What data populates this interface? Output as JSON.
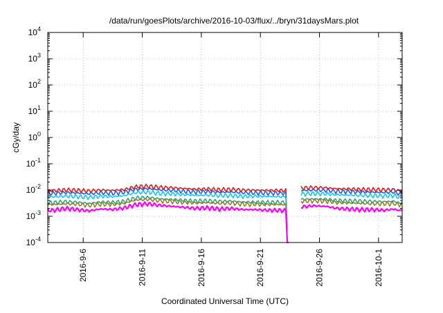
{
  "chart_data": {
    "type": "line",
    "title": "/data/run/goesPlots/archive/2016-10-03/flux/../bryn/31daysMars.plot",
    "xlabel": "Coordinated Universal Time (UTC)",
    "ylabel": "cGy/day",
    "yscale": "log",
    "ylim": [
      0.0001,
      10000
    ],
    "xlim": [
      "2016-09-03T00:00",
      "2016-10-03T00:00"
    ],
    "grid": true,
    "y_ticks": [
      {
        "value": 0.0001,
        "base": "10",
        "exp": "-4"
      },
      {
        "value": 0.001,
        "base": "10",
        "exp": "-3"
      },
      {
        "value": 0.01,
        "base": "10",
        "exp": "-2"
      },
      {
        "value": 0.1,
        "base": "10",
        "exp": "-1"
      },
      {
        "value": 1,
        "base": "10",
        "exp": "0"
      },
      {
        "value": 10,
        "base": "10",
        "exp": "1"
      },
      {
        "value": 100,
        "base": "10",
        "exp": "2"
      },
      {
        "value": 1000,
        "base": "10",
        "exp": "3"
      },
      {
        "value": 10000,
        "base": "10",
        "exp": "4"
      }
    ],
    "x_ticks": [
      {
        "date": "2016-09-06",
        "label": "2016-9-6"
      },
      {
        "date": "2016-09-11",
        "label": "2016-9-11"
      },
      {
        "date": "2016-09-16",
        "label": "2016-9-16"
      },
      {
        "date": "2016-09-21",
        "label": "2016-9-21"
      },
      {
        "date": "2016-09-26",
        "label": "2016-9-26"
      },
      {
        "date": "2016-10-01",
        "label": "2016-10-1"
      }
    ],
    "x": [
      "2016-09-03T12:00",
      "2016-09-04T12:00",
      "2016-09-05T12:00",
      "2016-09-06T12:00",
      "2016-09-07T12:00",
      "2016-09-08T12:00",
      "2016-09-09T12:00",
      "2016-09-10T12:00",
      "2016-09-11T12:00",
      "2016-09-12T12:00",
      "2016-09-13T12:00",
      "2016-09-14T12:00",
      "2016-09-15T12:00",
      "2016-09-16T12:00",
      "2016-09-17T12:00",
      "2016-09-18T12:00",
      "2016-09-19T12:00",
      "2016-09-20T12:00",
      "2016-09-21T12:00",
      "2016-09-22T12:00",
      "2016-09-23T12:00",
      "2016-09-24T12:00",
      "2016-09-25T12:00",
      "2016-09-26T12:00",
      "2016-09-27T12:00",
      "2016-09-28T12:00",
      "2016-09-29T12:00",
      "2016-09-30T12:00",
      "2016-10-01T12:00",
      "2016-10-02T12:00"
    ],
    "series": [
      {
        "color": "#e41a1c",
        "values": [
          0.0095,
          0.0102,
          0.0098,
          0.0092,
          0.01,
          0.0097,
          0.0105,
          0.0135,
          0.014,
          0.0128,
          0.0122,
          0.0115,
          0.0108,
          0.011,
          0.0104,
          0.0106,
          0.01,
          0.0099,
          0.0098,
          0.0097,
          0.0096,
          0.012,
          0.0125,
          0.0122,
          0.0112,
          0.011,
          0.0106,
          0.0104,
          0.0102,
          0.0105
        ]
      },
      {
        "color": "#1f5fe0",
        "values": [
          0.0075,
          0.008,
          0.0077,
          0.0072,
          0.0079,
          0.0076,
          0.0083,
          0.0108,
          0.0112,
          0.0101,
          0.0097,
          0.009,
          0.0085,
          0.0087,
          0.0082,
          0.0084,
          0.0079,
          0.0078,
          0.0077,
          0.0076,
          0.0075,
          0.0096,
          0.01,
          0.0097,
          0.0089,
          0.0087,
          0.0084,
          0.0082,
          0.0081,
          0.0083
        ]
      },
      {
        "color": "#19c4e8",
        "values": [
          0.0055,
          0.0059,
          0.0057,
          0.0053,
          0.0058,
          0.0056,
          0.0061,
          0.008,
          0.0083,
          0.0075,
          0.0072,
          0.0067,
          0.0063,
          0.0064,
          0.0061,
          0.0062,
          0.0058,
          0.0058,
          0.0057,
          0.0056,
          0.0055,
          0.0071,
          0.0074,
          0.0072,
          0.0066,
          0.0064,
          0.0062,
          0.0061,
          0.006,
          0.0062
        ]
      },
      {
        "color": "#2aa879",
        "values": [
          0.0033,
          0.0036,
          0.0034,
          0.0031,
          0.0035,
          0.0034,
          0.0037,
          0.005,
          0.0052,
          0.0046,
          0.0044,
          0.0041,
          0.0038,
          0.0039,
          0.0037,
          0.0038,
          0.0035,
          0.0035,
          0.0034,
          0.0034,
          0.0033,
          0.0044,
          0.0046,
          0.0045,
          0.004,
          0.0039,
          0.0038,
          0.0037,
          0.0036,
          0.0038
        ]
      },
      {
        "color": "#9a7b2a",
        "values": [
          0.0028,
          0.003,
          0.0029,
          0.0026,
          0.0029,
          0.0028,
          0.0031,
          0.0042,
          0.0044,
          0.0039,
          0.0037,
          0.0034,
          0.0032,
          0.0033,
          0.0031,
          0.0032,
          0.0029,
          0.0029,
          0.0028,
          0.0028,
          0.0027,
          0.0037,
          0.0039,
          0.0038,
          0.0033,
          0.0032,
          0.0031,
          0.003,
          0.003,
          0.0031
        ]
      },
      {
        "color": "#ff00ff",
        "values": [
          0.0017,
          0.002,
          0.0018,
          0.0016,
          0.0019,
          0.0018,
          0.0021,
          0.0028,
          0.003,
          0.0026,
          0.0024,
          0.0022,
          0.002,
          0.0021,
          0.0019,
          0.002,
          0.0018,
          0.0018,
          0.0017,
          0.0017,
          0.0016,
          0.0023,
          0.0025,
          0.0024,
          0.002,
          0.0019,
          0.0018,
          0.0018,
          0.0017,
          0.0019
        ]
      }
    ],
    "data_gap": {
      "dip_start": "2016-09-23T05:00",
      "dip_end": "2016-09-23T12:00",
      "gap_start": "2016-09-23T12:00",
      "gap_end": "2016-09-24T10:00"
    },
    "drop_to_axis": "2016-09-23"
  }
}
